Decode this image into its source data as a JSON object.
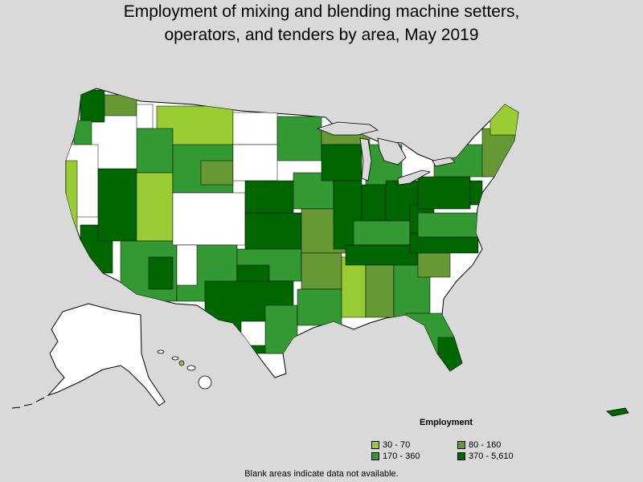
{
  "title": {
    "line1": "Employment of mixing and blending machine setters,",
    "line2": "operators, and tenders by area, May 2019"
  },
  "legend": {
    "title": "Employment",
    "items": [
      {
        "label": "30 - 70",
        "color": "#99cc33"
      },
      {
        "label": "80 - 160",
        "color": "#669933"
      },
      {
        "label": "170 - 360",
        "color": "#339933"
      },
      {
        "label": "370 - 5,610",
        "color": "#006600"
      }
    ]
  },
  "footnote": "Blank areas indicate data not available.",
  "colors": {
    "background": "#d9d9d9",
    "no_data": "#ffffff",
    "border": "#000000"
  }
}
